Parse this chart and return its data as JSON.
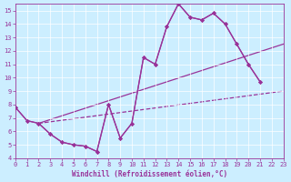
{
  "xlabel": "Windchill (Refroidissement éolien,°C)",
  "xlim": [
    0,
    23
  ],
  "ylim": [
    4,
    15.5
  ],
  "yticks": [
    4,
    5,
    6,
    7,
    8,
    9,
    10,
    11,
    12,
    13,
    14,
    15
  ],
  "xticks": [
    0,
    1,
    2,
    3,
    4,
    5,
    6,
    7,
    8,
    9,
    10,
    11,
    12,
    13,
    14,
    15,
    16,
    17,
    18,
    19,
    20,
    21,
    22,
    23
  ],
  "bg_color": "#cceeff",
  "line_color": "#993399",
  "grid_color": "#ffffff",
  "line1_x": [
    0,
    1,
    2,
    3,
    4,
    5,
    6,
    7,
    8,
    9,
    10,
    11,
    12,
    13,
    14,
    15,
    16,
    17,
    18,
    19,
    20,
    21
  ],
  "line1_y": [
    7.8,
    6.8,
    6.6,
    5.8,
    5.2,
    5.0,
    4.9,
    4.5,
    8.0,
    5.5,
    6.6,
    11.5,
    11.0,
    13.8,
    15.5,
    14.5,
    14.3,
    14.8,
    14.0,
    12.5,
    11.0,
    9.7
  ],
  "line2_x": [
    2,
    23
  ],
  "line2_y": [
    6.6,
    12.5
  ],
  "line3_x": [
    2,
    23
  ],
  "line3_y": [
    6.6,
    9.0
  ],
  "line4_x": [
    0,
    1,
    2,
    3,
    4,
    5,
    6,
    7,
    8,
    9,
    10,
    11,
    12,
    13,
    14,
    15,
    16,
    17,
    18,
    19,
    20,
    21
  ],
  "line4_y": [
    7.8,
    6.8,
    6.6,
    5.8,
    5.2,
    5.0,
    4.9,
    4.5,
    8.0,
    5.5,
    6.6,
    11.5,
    11.0,
    13.8,
    15.5,
    14.5,
    14.3,
    14.8,
    14.0,
    12.5,
    11.0,
    9.7
  ]
}
